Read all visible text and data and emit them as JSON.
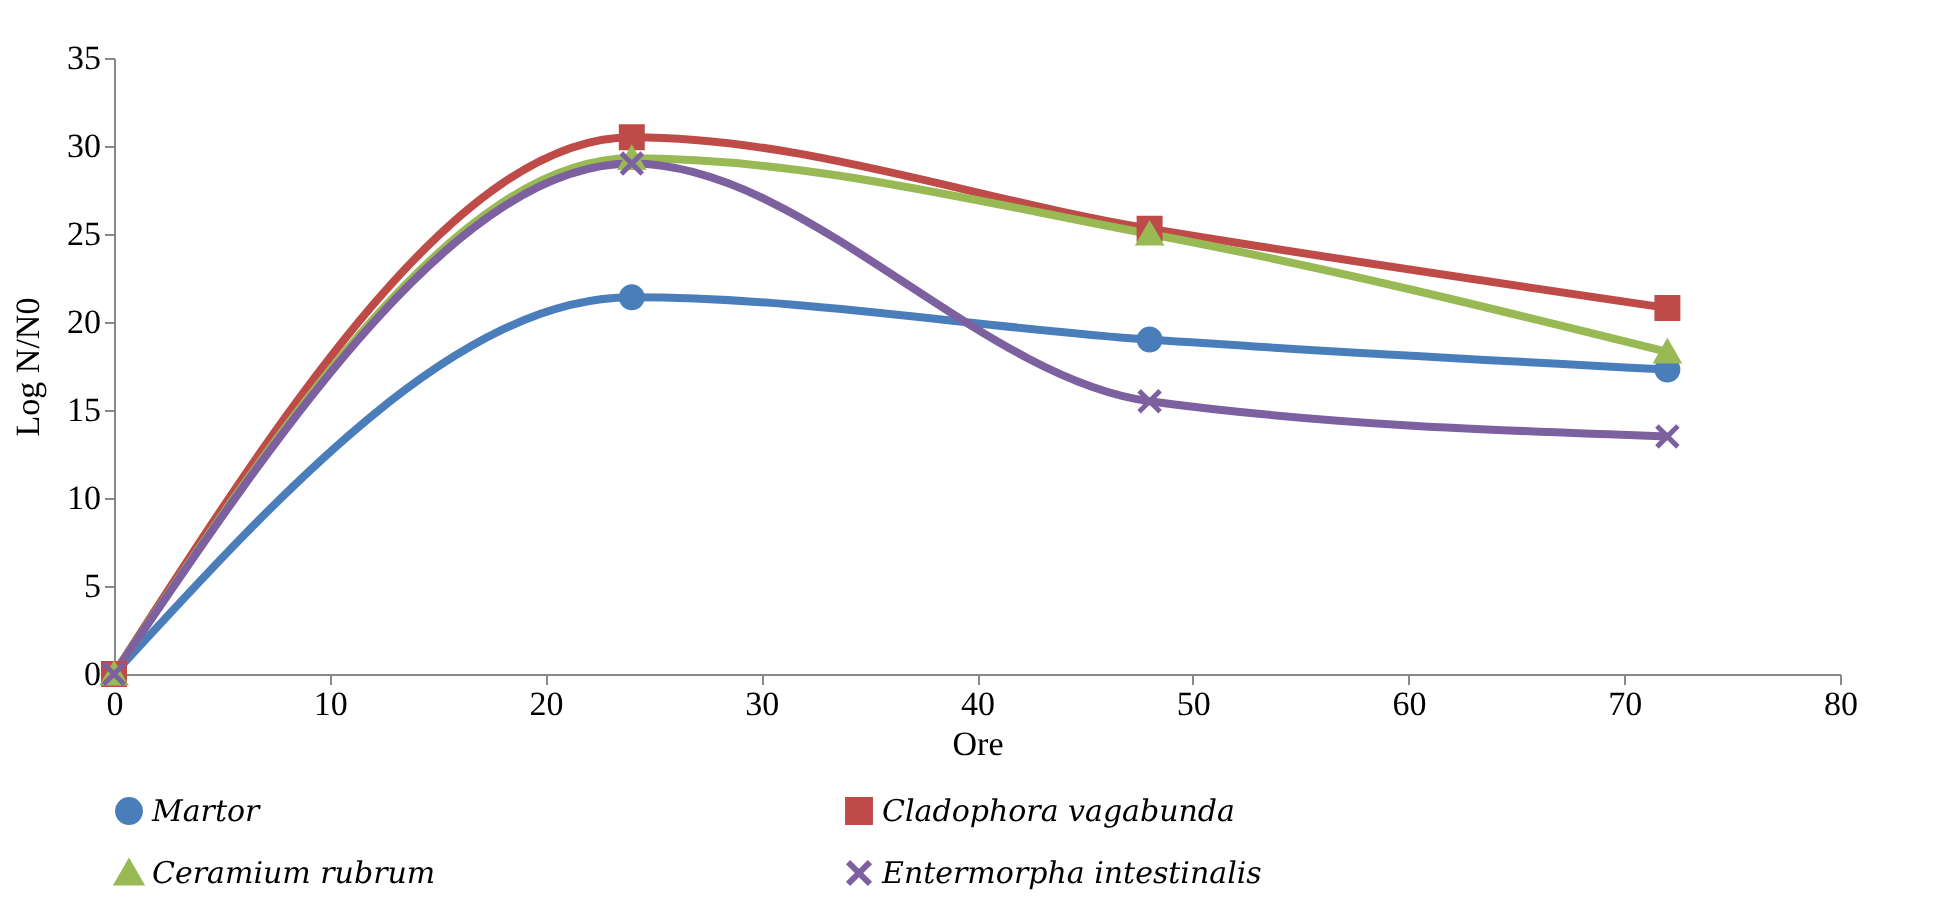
{
  "chart_data": {
    "type": "line",
    "xlabel": "Ore",
    "ylabel": "Log N/N0",
    "x": [
      0,
      24,
      48,
      72
    ],
    "series": [
      {
        "name": "Martor",
        "color": "#4a7ebb",
        "marker": "circle",
        "values": [
          0,
          21.4,
          19,
          17.3
        ]
      },
      {
        "name": "Cladophora vagabunda",
        "color": "#be4b48",
        "marker": "square",
        "values": [
          0,
          30.5,
          25.3,
          20.8
        ]
      },
      {
        "name": "Ceramium rubrum",
        "color": "#98b954",
        "marker": "triangle",
        "values": [
          0,
          29.3,
          25,
          18.3
        ]
      },
      {
        "name": "Entermorpha intestinalis",
        "color": "#7d60a0",
        "marker": "cross",
        "values": [
          0,
          29,
          15.5,
          13.5
        ]
      }
    ],
    "xlim": [
      0,
      80
    ],
    "xticks": [
      0,
      10,
      20,
      30,
      40,
      50,
      60,
      70,
      80
    ],
    "ylim": [
      0,
      35
    ],
    "yticks": [
      0,
      5,
      10,
      15,
      20,
      25,
      30,
      35
    ],
    "grid": false,
    "legend": "bottom",
    "line_style": "solid"
  }
}
